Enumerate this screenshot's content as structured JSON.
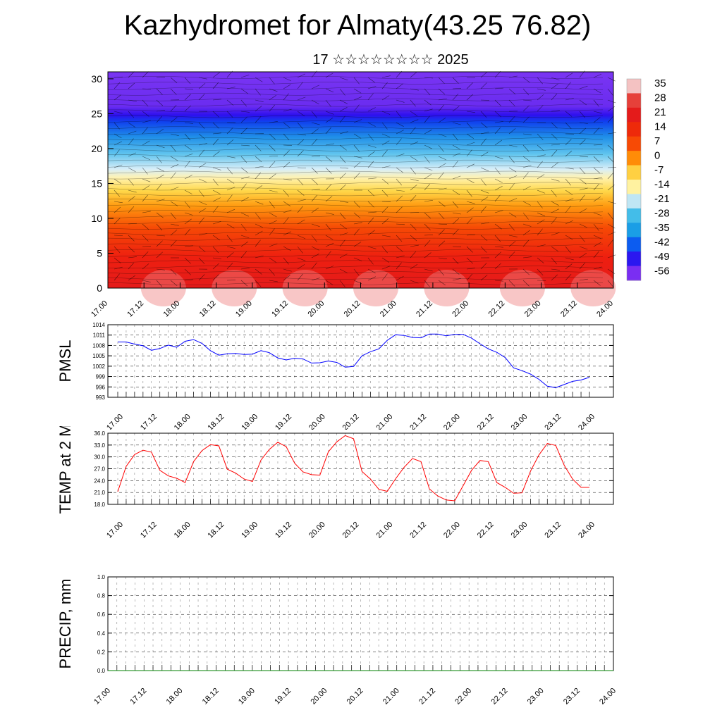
{
  "title": "Kazhydromet for Almaty(43.25 76.82)",
  "subtitle": "17 ☆☆☆☆☆☆☆☆ 2025",
  "time_labels": [
    "17.00",
    "17.12",
    "18.00",
    "18.12",
    "19.00",
    "19.12",
    "20.00",
    "20.12",
    "21.00",
    "21.12",
    "22.00",
    "22.12",
    "23.00",
    "23.12",
    "24.00"
  ],
  "chart_data": [
    {
      "type": "heatmap",
      "yticks": [
        0,
        5,
        10,
        15,
        20,
        25,
        30
      ],
      "ylim": [
        0,
        31
      ],
      "colorbar_labels": [
        "35",
        "28",
        "21",
        "14",
        "7",
        "0",
        "-7",
        "-14",
        "-21",
        "-28",
        "-35",
        "-42",
        "-49",
        "-56"
      ],
      "colorbar_colors": [
        "#f4c2c2",
        "#e6403a",
        "#e41b1b",
        "#ee2a0a",
        "#f74a05",
        "#ff8c08",
        "#ffd042",
        "#fff2a0",
        "#bfe6f4",
        "#43bde9",
        "#1a9ee6",
        "#0c5cf0",
        "#2b17f0",
        "#7a2ef2"
      ]
    },
    {
      "type": "line",
      "ylabel": "PMSL",
      "ylim": [
        993,
        1014
      ],
      "yticks": [
        "993",
        "996",
        "999",
        "1002",
        "1005",
        "1008",
        "1011",
        "1014"
      ],
      "color": "#0000ff",
      "values": [
        1009,
        1009,
        1008.4,
        1007.9,
        1006.6,
        1007.1,
        1008.1,
        1007.5,
        1009.2,
        1009.7,
        1008.6,
        1006.5,
        1005.2,
        1005.6,
        1005.7,
        1005.4,
        1005.5,
        1006.5,
        1005.9,
        1004.4,
        1003.8,
        1004.3,
        1004.1,
        1002.9,
        1003,
        1003.5,
        1003.1,
        1001.7,
        1001.9,
        1005,
        1006.2,
        1007,
        1009.5,
        1011.1,
        1010.9,
        1010.3,
        1010.2,
        1011.3,
        1011.3,
        1010.8,
        1011.2,
        1011.2,
        1010.1,
        1008.5,
        1007,
        1006,
        1004.5,
        1001.5,
        1000.7,
        999.7,
        998.2,
        996.2,
        995.8,
        996.7,
        997.6,
        998,
        998.8
      ]
    },
    {
      "type": "line",
      "ylabel": "TEMP at 2 M",
      "ylim": [
        18,
        36
      ],
      "yticks": [
        "18.0",
        "21.0",
        "24.0",
        "27.0",
        "30.0",
        "33.0",
        "36.0"
      ],
      "color": "#ff0000",
      "values": [
        21.2,
        27.6,
        30.6,
        31.7,
        31.2,
        26.6,
        25.2,
        24.6,
        23.5,
        28.8,
        31.6,
        33.1,
        32.8,
        26.9,
        25.9,
        24.4,
        23.8,
        29.2,
        31.9,
        33.7,
        32.6,
        28.4,
        26.2,
        25.5,
        25.4,
        31.3,
        33.8,
        35.4,
        34.6,
        26.3,
        24.4,
        21.8,
        21.3,
        24.5,
        27.4,
        29.6,
        28.8,
        21.9,
        20.1,
        19.1,
        18.9,
        22.7,
        26.6,
        29.1,
        28.8,
        23.5,
        22.3,
        20.8,
        20.9,
        26.4,
        30.5,
        33.4,
        32.9,
        27.9,
        24.4,
        22.3,
        22.3
      ]
    },
    {
      "type": "line",
      "ylabel": "PRECIP, mm",
      "ylim": [
        0,
        1
      ],
      "yticks": [
        "0.0",
        "0.2",
        "0.4",
        "0.6",
        "0.8",
        "1.0"
      ],
      "color": "#008000",
      "values": [
        0,
        0,
        0,
        0,
        0,
        0,
        0,
        0,
        0,
        0,
        0,
        0,
        0,
        0,
        0,
        0,
        0,
        0,
        0,
        0,
        0,
        0,
        0,
        0,
        0,
        0,
        0,
        0,
        0,
        0,
        0,
        0,
        0,
        0,
        0,
        0,
        0,
        0,
        0,
        0,
        0,
        0,
        0,
        0,
        0,
        0,
        0,
        0,
        0,
        0,
        0,
        0,
        0,
        0,
        0,
        0,
        0
      ]
    }
  ]
}
